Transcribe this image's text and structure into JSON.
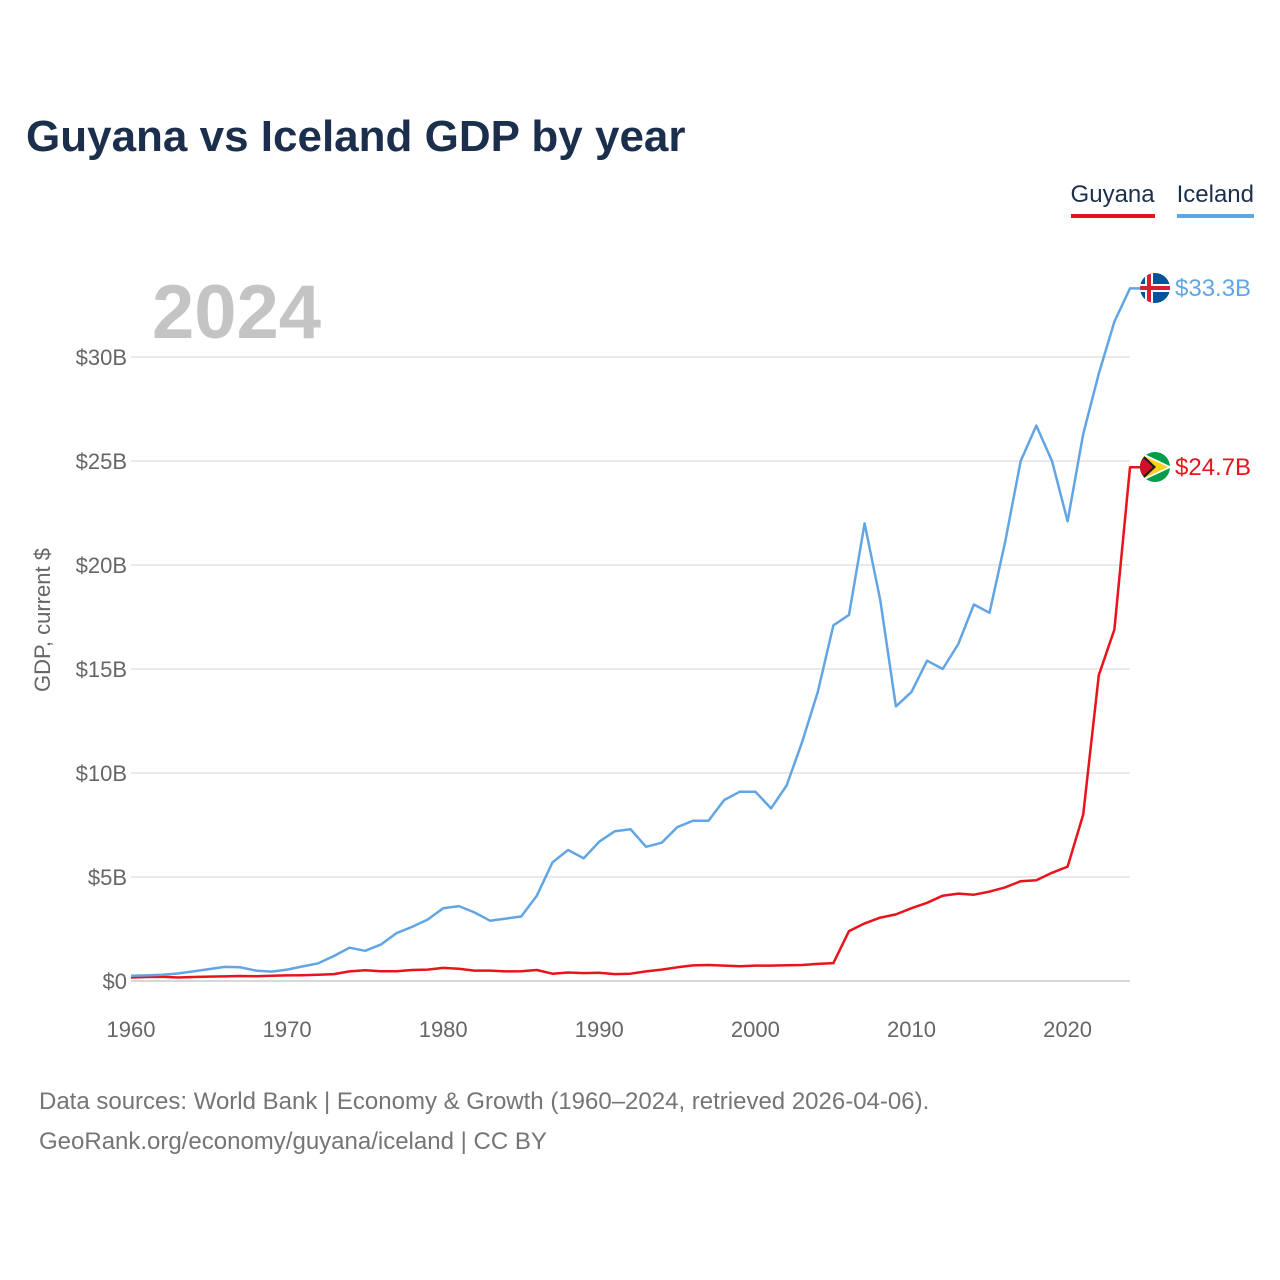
{
  "chart_data": {
    "type": "line",
    "title": "Guyana vs Iceland GDP by year",
    "ylabel": "GDP, current $",
    "xlabel": "",
    "xlim": [
      1960,
      2024
    ],
    "ylim": [
      0,
      33.3
    ],
    "x_ticks": [
      1960,
      1970,
      1980,
      1990,
      2000,
      2010,
      2020
    ],
    "x_tick_labels": [
      "1960",
      "1970",
      "1980",
      "1990",
      "2000",
      "2010",
      "2020"
    ],
    "y_ticks": [
      0,
      5,
      10,
      15,
      20,
      25,
      30
    ],
    "y_tick_labels": [
      "$0",
      "$5B",
      "$10B",
      "$15B",
      "$20B",
      "$25B",
      "$30B"
    ],
    "grid": true,
    "legend_position": "top-right",
    "watermark_year": "2024",
    "x": [
      1960,
      1961,
      1962,
      1963,
      1964,
      1965,
      1966,
      1967,
      1968,
      1969,
      1970,
      1971,
      1972,
      1973,
      1974,
      1975,
      1976,
      1977,
      1978,
      1979,
      1980,
      1981,
      1982,
      1983,
      1984,
      1985,
      1986,
      1987,
      1988,
      1989,
      1990,
      1991,
      1992,
      1993,
      1994,
      1995,
      1996,
      1997,
      1998,
      1999,
      2000,
      2001,
      2002,
      2003,
      2004,
      2005,
      2006,
      2007,
      2008,
      2009,
      2010,
      2011,
      2012,
      2013,
      2014,
      2015,
      2016,
      2017,
      2018,
      2019,
      2020,
      2021,
      2022,
      2023,
      2024
    ],
    "series": [
      {
        "name": "Guyana",
        "color": "#e8131b",
        "end_label": "$24.7B",
        "values": [
          0.17,
          0.19,
          0.2,
          0.17,
          0.19,
          0.21,
          0.22,
          0.24,
          0.23,
          0.25,
          0.27,
          0.28,
          0.3,
          0.33,
          0.46,
          0.52,
          0.47,
          0.47,
          0.53,
          0.55,
          0.63,
          0.59,
          0.5,
          0.5,
          0.46,
          0.47,
          0.53,
          0.35,
          0.41,
          0.38,
          0.4,
          0.33,
          0.35,
          0.46,
          0.55,
          0.66,
          0.75,
          0.77,
          0.74,
          0.71,
          0.74,
          0.74,
          0.76,
          0.77,
          0.82,
          0.86,
          2.4,
          2.77,
          3.05,
          3.2,
          3.5,
          3.76,
          4.1,
          4.2,
          4.15,
          4.3,
          4.5,
          4.8,
          4.84,
          5.2,
          5.5,
          8.0,
          14.7,
          16.9,
          24.7
        ]
      },
      {
        "name": "Iceland",
        "color": "#62a5e4",
        "end_label": "$33.3B",
        "values": [
          0.25,
          0.27,
          0.3,
          0.36,
          0.46,
          0.57,
          0.68,
          0.66,
          0.5,
          0.45,
          0.55,
          0.7,
          0.85,
          1.2,
          1.6,
          1.45,
          1.75,
          2.3,
          2.6,
          2.95,
          3.5,
          3.6,
          3.3,
          2.9,
          3.0,
          3.1,
          4.1,
          5.7,
          6.3,
          5.9,
          6.7,
          7.2,
          7.3,
          6.45,
          6.65,
          7.4,
          7.7,
          7.7,
          8.7,
          9.1,
          9.1,
          8.3,
          9.4,
          11.5,
          13.9,
          17.1,
          17.6,
          22.0,
          18.3,
          13.2,
          13.9,
          15.4,
          15.0,
          16.2,
          18.1,
          17.7,
          21.1,
          25.0,
          26.7,
          25.0,
          22.1,
          26.3,
          29.2,
          31.7,
          33.3
        ]
      }
    ]
  },
  "footer": {
    "line1": "Data sources: World Bank | Economy & Growth (1960–2024, retrieved 2026-04-06).",
    "line2": "GeoRank.org/economy/guyana/iceland | CC BY"
  },
  "flags": {
    "iceland": "iceland-flag-icon",
    "guyana": "guyana-flag-icon"
  }
}
